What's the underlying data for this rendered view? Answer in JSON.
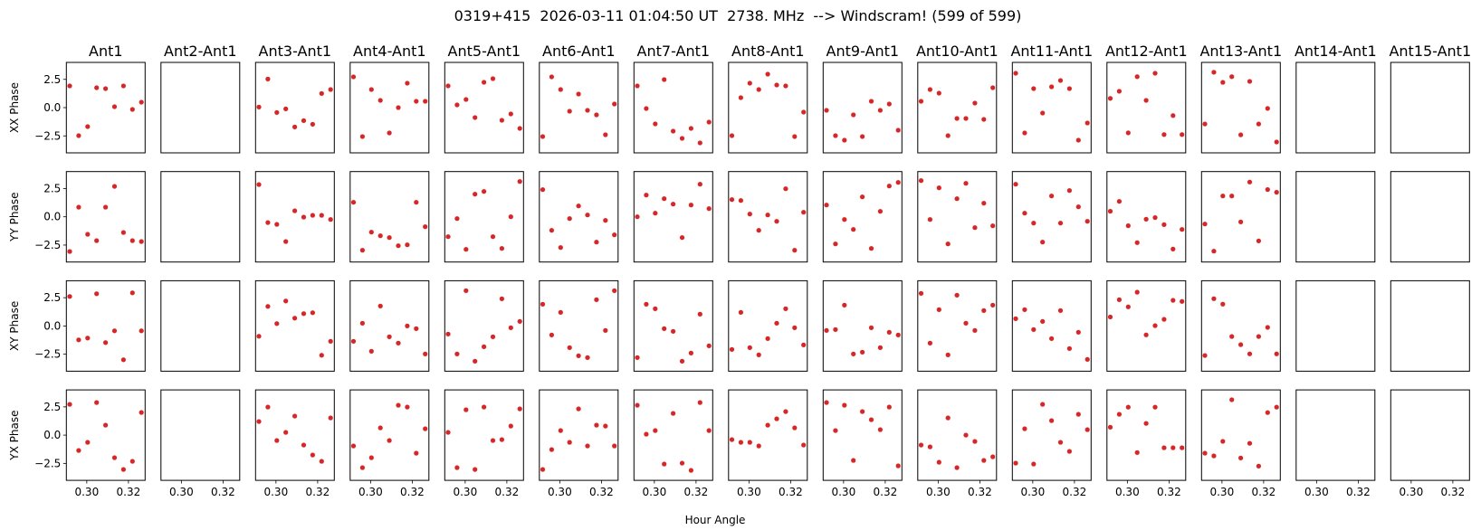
{
  "chart_data": {
    "type": "scatter",
    "title": "0319+415  2026-03-11 01:04:50 UT  2738. MHz  --> Windscram! (599 of 599)",
    "xlabel": "Hour Angle",
    "row_labels": [
      "XX Phase",
      "YY Phase",
      "XY Phase",
      "YX Phase"
    ],
    "row_keys": [
      "XX",
      "YY",
      "XY",
      "YX"
    ],
    "xlim": [
      0.2902,
      0.328
    ],
    "ylim": [
      -4,
      4
    ],
    "xticks": [
      {
        "value": 0.3,
        "label": "0.30"
      },
      {
        "value": 0.32,
        "label": "0.32"
      }
    ],
    "yticks": [
      {
        "value": 2.5,
        "label": "2.5"
      },
      {
        "value": 0.0,
        "label": "0.0"
      },
      {
        "value": -2.5,
        "label": "−2.5"
      }
    ],
    "marker_color": "#d62728",
    "x": [
      0.2918,
      0.2961,
      0.3004,
      0.3047,
      0.309,
      0.3133,
      0.3176,
      0.3219,
      0.3262
    ],
    "panels": [
      {
        "title": "Ant1",
        "XX": [
          1.92,
          -2.48,
          -1.68,
          1.76,
          1.68,
          0.08,
          1.92,
          -0.16,
          0.48
        ],
        "YY": [
          -3.07,
          0.85,
          -1.55,
          -2.11,
          0.85,
          2.69,
          -1.39,
          -2.11,
          -2.19
        ],
        "XY": [
          2.61,
          -1.23,
          -1.07,
          2.85,
          -1.47,
          -0.43,
          -2.99,
          2.93,
          -0.43
        ],
        "YX": [
          2.72,
          -1.36,
          -0.64,
          2.88,
          0.88,
          -2.0,
          -3.04,
          -2.32,
          2.0
        ]
      },
      {
        "title": "Ant2-Ant1",
        "XX": [],
        "YY": [],
        "XY": [],
        "YX": []
      },
      {
        "title": "Ant3-Ant1",
        "XX": [
          0.05,
          2.53,
          -0.43,
          -0.11,
          -1.71,
          -1.15,
          -1.47,
          1.25,
          1.6
        ],
        "YY": [
          2.85,
          -0.51,
          -0.67,
          -2.19,
          0.53,
          -0.03,
          0.13,
          0.13,
          -0.24
        ],
        "XY": [
          -0.91,
          1.73,
          0.21,
          2.21,
          0.69,
          1.09,
          1.17,
          -2.59,
          -1.36
        ],
        "YX": [
          1.2,
          2.48,
          -0.48,
          0.24,
          1.68,
          -0.88,
          -1.76,
          -2.32,
          1.52
        ]
      },
      {
        "title": "Ant4-Ant1",
        "XX": [
          2.72,
          -2.56,
          1.6,
          0.64,
          -2.24,
          0.0,
          2.16,
          0.56,
          0.56
        ],
        "YY": [
          1.28,
          -2.96,
          -1.36,
          -1.68,
          -1.84,
          -2.56,
          -2.48,
          1.28,
          -0.88
        ],
        "XY": [
          -1.36,
          0.24,
          -2.24,
          1.76,
          -0.96,
          -1.52,
          0.0,
          -0.24,
          -2.48
        ],
        "YX": [
          -0.96,
          -2.88,
          -2.0,
          0.64,
          -0.48,
          2.64,
          2.48,
          -1.6,
          0.56
        ]
      },
      {
        "title": "Ant5-Ant1",
        "XX": [
          1.92,
          0.24,
          0.72,
          -0.88,
          2.24,
          2.56,
          -1.12,
          -0.56,
          -1.84
        ],
        "YY": [
          -1.76,
          -0.16,
          -2.88,
          2.0,
          2.24,
          -1.76,
          -2.8,
          0.0,
          3.12
        ],
        "XY": [
          -0.72,
          -2.48,
          3.12,
          -3.12,
          -1.84,
          -0.96,
          2.4,
          -0.16,
          0.4
        ],
        "YX": [
          0.24,
          -2.88,
          2.24,
          -3.04,
          2.48,
          -0.48,
          -0.4,
          0.8,
          2.32
        ]
      },
      {
        "title": "Ant6-Ant1",
        "XX": [
          -2.56,
          2.72,
          1.6,
          -0.32,
          1.2,
          -0.24,
          -0.64,
          -2.4,
          0.32
        ],
        "YY": [
          2.4,
          -1.2,
          -2.72,
          -0.16,
          0.96,
          0.16,
          -2.24,
          -0.32,
          -1.6
        ],
        "XY": [
          1.92,
          -0.8,
          1.2,
          -1.92,
          -2.64,
          -2.8,
          2.32,
          -0.4,
          3.12
        ],
        "YX": [
          -3.04,
          -1.28,
          0.4,
          -0.64,
          2.32,
          -0.96,
          0.88,
          0.8,
          -0.96
        ]
      },
      {
        "title": "Ant7-Ant1",
        "XX": [
          1.92,
          -0.08,
          -1.44,
          2.48,
          -2.08,
          -2.72,
          -1.84,
          -3.12,
          -1.28
        ],
        "YY": [
          0.0,
          1.92,
          0.32,
          1.6,
          1.12,
          -1.84,
          1.04,
          2.88,
          0.72
        ],
        "XY": [
          -2.8,
          1.92,
          1.52,
          -0.24,
          -0.48,
          -3.12,
          -2.4,
          1.04,
          -1.76
        ],
        "YX": [
          2.64,
          0.08,
          0.4,
          -2.56,
          1.92,
          -2.48,
          -3.12,
          2.88,
          0.4
        ]
      },
      {
        "title": "Ant8-Ant1",
        "XX": [
          -2.48,
          0.88,
          2.16,
          1.6,
          2.96,
          2.0,
          1.92,
          -2.56,
          -0.4
        ],
        "YY": [
          1.52,
          1.44,
          0.24,
          -1.2,
          0.16,
          -0.4,
          2.48,
          -2.96,
          0.4
        ],
        "XY": [
          -2.08,
          1.2,
          -1.92,
          -2.56,
          -1.12,
          0.24,
          1.52,
          -0.16,
          -1.68
        ],
        "YX": [
          -0.4,
          -0.64,
          -0.64,
          -0.96,
          0.88,
          1.44,
          2.08,
          0.64,
          -0.88
        ]
      },
      {
        "title": "Ant9-Ant1",
        "XX": [
          -0.24,
          -2.48,
          -2.88,
          -0.64,
          -2.56,
          0.56,
          -0.24,
          0.32,
          -2.0
        ],
        "YY": [
          1.04,
          -2.4,
          -0.24,
          -1.12,
          1.76,
          -2.8,
          0.48,
          2.72,
          3.04
        ],
        "XY": [
          -0.4,
          -0.32,
          1.84,
          -2.48,
          -2.32,
          -0.16,
          -1.92,
          -0.56,
          -0.8
        ],
        "YX": [
          2.88,
          0.4,
          2.64,
          -2.24,
          2.08,
          1.36,
          0.48,
          2.48,
          -2.72
        ]
      },
      {
        "title": "Ant10-Ant1",
        "XX": [
          0.56,
          1.6,
          1.28,
          -2.48,
          -0.96,
          -0.96,
          0.4,
          -1.04,
          1.76
        ],
        "YY": [
          3.2,
          -0.24,
          2.56,
          -2.4,
          1.6,
          2.96,
          -0.96,
          1.2,
          -0.8
        ],
        "XY": [
          2.88,
          -1.52,
          1.44,
          -2.56,
          2.72,
          0.24,
          -0.4,
          1.36,
          1.84
        ],
        "YX": [
          -0.88,
          -1.04,
          -2.4,
          1.52,
          -2.88,
          0.0,
          -0.56,
          -2.24,
          -1.92
        ]
      },
      {
        "title": "Ant11-Ant1",
        "XX": [
          3.04,
          -2.24,
          1.68,
          -0.48,
          1.84,
          2.4,
          1.68,
          -2.88,
          -1.36
        ],
        "YY": [
          2.88,
          0.32,
          -0.56,
          -2.24,
          1.84,
          -0.56,
          2.32,
          0.88,
          -0.4
        ],
        "XY": [
          0.64,
          1.44,
          -0.32,
          0.4,
          -1.12,
          1.36,
          -2.0,
          -0.56,
          -2.96
        ],
        "YX": [
          -2.48,
          0.56,
          -2.56,
          2.72,
          1.28,
          -0.64,
          -1.44,
          1.84,
          0.48
        ]
      },
      {
        "title": "Ant12-Ant1",
        "XX": [
          0.82,
          1.45,
          -2.23,
          2.74,
          0.64,
          3.04,
          -2.38,
          -0.7,
          -2.38
        ],
        "YY": [
          0.49,
          1.36,
          -0.79,
          -2.29,
          -0.22,
          -0.07,
          -0.7,
          -2.86,
          -1.12
        ],
        "XY": [
          0.79,
          2.32,
          1.69,
          2.98,
          -0.79,
          0.02,
          0.58,
          2.26,
          2.17
        ],
        "YX": [
          0.7,
          1.84,
          2.47,
          -1.54,
          1.03,
          2.47,
          -1.12,
          -1.12,
          -1.12
        ]
      },
      {
        "title": "Ant13-Ant1",
        "XX": [
          -1.45,
          3.13,
          2.23,
          2.74,
          -2.41,
          2.32,
          -1.45,
          -0.07,
          -3.04
        ],
        "YY": [
          -0.64,
          -3.04,
          1.84,
          1.84,
          -0.46,
          3.07,
          -2.14,
          2.41,
          2.17
        ],
        "XY": [
          -2.62,
          2.41,
          1.93,
          -0.94,
          -1.66,
          -2.47,
          -0.94,
          -0.13,
          -2.47
        ],
        "YX": [
          -1.6,
          -1.84,
          -0.55,
          3.13,
          -2.02,
          -0.73,
          -2.74,
          1.99,
          2.47
        ]
      },
      {
        "title": "Ant14-Ant1",
        "XX": [],
        "YY": [],
        "XY": [],
        "YX": []
      },
      {
        "title": "Ant15-Ant1",
        "XX": [],
        "YY": [],
        "XY": [],
        "YX": []
      }
    ]
  }
}
